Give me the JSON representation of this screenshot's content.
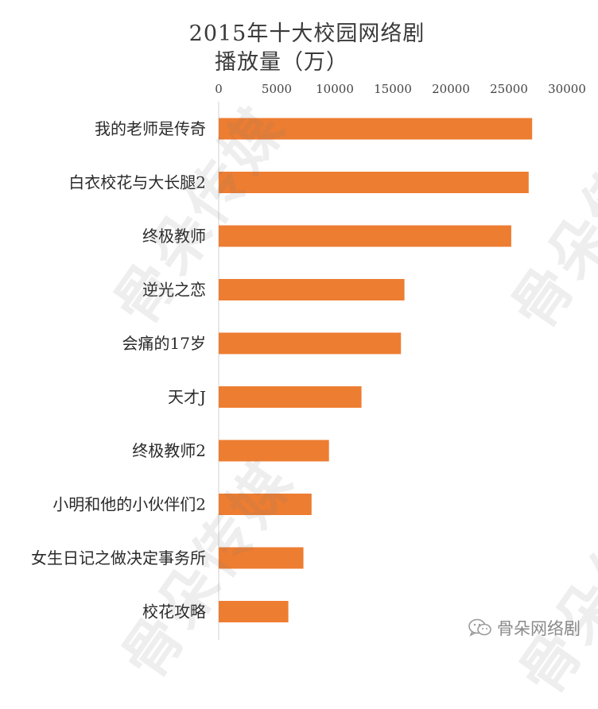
{
  "chart_data": {
    "type": "bar",
    "orientation": "horizontal",
    "title": "2015年十大校园网络剧",
    "subtitle": "播放量（万）",
    "xlabel": "",
    "ylabel": "",
    "xlim": [
      0,
      30000
    ],
    "xticks": [
      0,
      5000,
      10000,
      15000,
      20000,
      25000,
      30000
    ],
    "xtick_labels": [
      "0",
      "5000",
      "10000",
      "15000",
      "20000",
      "25000",
      "30000"
    ],
    "x_axis_position": "top",
    "grid": false,
    "legend": "none",
    "bar_color": "#ED7D31",
    "categories": [
      "我的老师是传奇",
      "白衣校花与大长腿2",
      "终极教师",
      "逆光之恋",
      "会痛的17岁",
      "天才J",
      "终极教师2",
      "小明和他的小伙伴们2",
      "女生日记之做决定事务所",
      "校花攻略"
    ],
    "values": [
      27000,
      26700,
      25200,
      16000,
      15700,
      12300,
      9500,
      8000,
      7300,
      6000
    ]
  },
  "watermark": {
    "text": "骨朵传媒",
    "footer_text": "骨朵网络剧"
  }
}
